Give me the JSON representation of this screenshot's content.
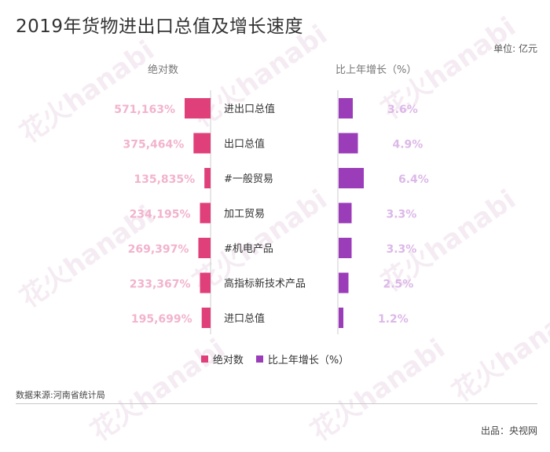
{
  "title": "2019年货物进出口总值及增长速度",
  "unit": "单位: 亿元",
  "column_headers": {
    "left": "绝对数",
    "right": "比上年增长（%）"
  },
  "source": "数据来源:河南省统计局",
  "credit": "出品：央视网",
  "watermark": "花火hanabi",
  "colors": {
    "absolute": "#e0407a",
    "growth": "#9b3db8",
    "absolute_label": "#f2b3cd",
    "growth_label": "#dcb8e8"
  },
  "chart_data": {
    "type": "bar",
    "categories": [
      "进出口总值",
      "出口总值",
      "#一般贸易",
      "加工贸易",
      "#机电产品",
      "高指标新技术产品",
      "进口总值"
    ],
    "series": [
      {
        "name": "绝对数",
        "values": [
          571163,
          375464,
          135835,
          234195,
          269397,
          233367,
          195699
        ],
        "labels": [
          "571,163%",
          "375,464%",
          "135,835%",
          "234,195%",
          "269,397%",
          "233,367%",
          "195,699%"
        ]
      },
      {
        "name": "比上年增长（%）",
        "values": [
          3.6,
          4.9,
          6.4,
          3.3,
          3.3,
          2.5,
          1.2
        ],
        "labels": [
          "3.6%",
          "4.9%",
          "6.4%",
          "3.3%",
          "3.3%",
          "2.5%",
          "1.2%"
        ]
      }
    ]
  }
}
